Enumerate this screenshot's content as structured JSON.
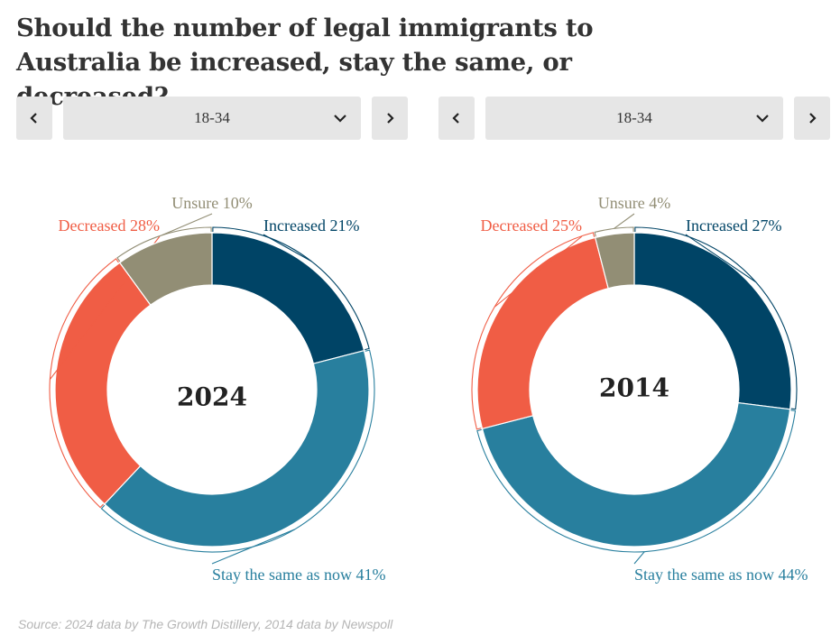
{
  "title": "Should the number of legal immigrants to Australia be increased, stay the same, or decreased?",
  "selectors": [
    {
      "value": "18-34"
    },
    {
      "value": "18-34"
    }
  ],
  "icons": {
    "prev": "chevron-left-icon",
    "next": "chevron-right-icon",
    "dropdown": "chevron-down-icon"
  },
  "colors": {
    "Increased": "#004466",
    "Stay the same as now": "#287f9e",
    "Decreased": "#f05d45",
    "Unsure": "#928e75"
  },
  "chart_data": [
    {
      "type": "pie",
      "center_label": "2024",
      "categories": [
        "Increased",
        "Stay the same as now",
        "Decreased",
        "Unsure"
      ],
      "values": [
        21,
        41,
        28,
        10
      ],
      "labels": [
        "Increased 21%",
        "Stay the same as now 41%",
        "Decreased 28%",
        "Unsure 10%"
      ]
    },
    {
      "type": "pie",
      "center_label": "2014",
      "categories": [
        "Increased",
        "Stay the same as now",
        "Decreased",
        "Unsure"
      ],
      "values": [
        27,
        44,
        25,
        4
      ],
      "labels": [
        "Increased 27%",
        "Stay the same as now 44%",
        "Decreased 25%",
        "Unsure 4%"
      ]
    }
  ],
  "source": "Source: 2024 data by The Growth Distillery, 2014 data by Newspoll"
}
